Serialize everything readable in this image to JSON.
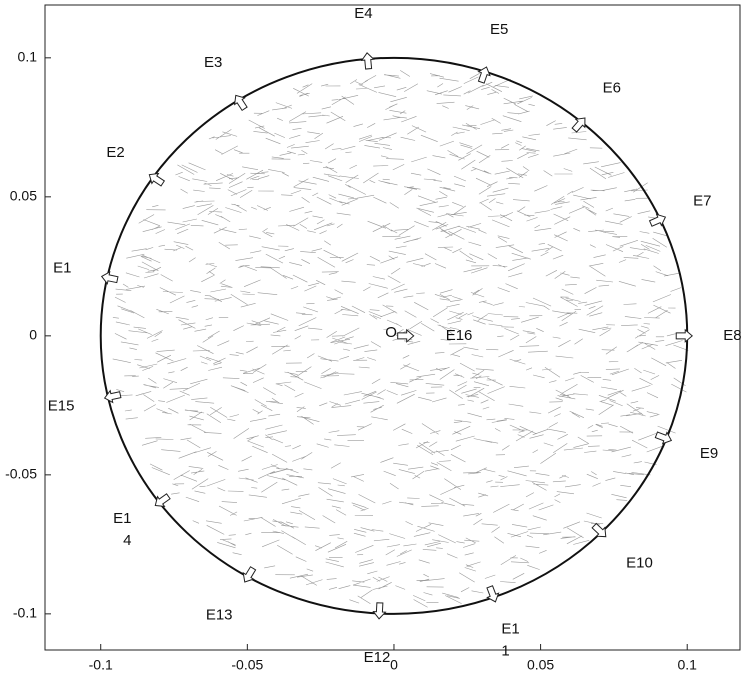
{
  "chart_data": {
    "type": "electrode-map",
    "xlim": [
      -0.119,
      0.118
    ],
    "ylim": [
      -0.113,
      0.119
    ],
    "xticks": [
      -0.1,
      -0.05,
      0,
      0.05,
      0.1
    ],
    "yticks": [
      -0.1,
      -0.05,
      0,
      0.05,
      0.1
    ],
    "boundary_radius": 0.1,
    "center_marker": {
      "text": "O",
      "x": -0.001,
      "y": 0.001
    },
    "electrodes": [
      {
        "label": [
          "E1"
        ],
        "x": -0.098,
        "y": 0.021
      },
      {
        "label": [
          "E2"
        ],
        "x": -0.082,
        "y": 0.057
      },
      {
        "label": [
          "E3"
        ],
        "x": -0.053,
        "y": 0.085
      },
      {
        "label": [
          "E4"
        ],
        "x": -0.009,
        "y": 0.1
      },
      {
        "label": [
          "E5"
        ],
        "x": 0.031,
        "y": 0.095
      },
      {
        "label": [
          "E6"
        ],
        "x": 0.064,
        "y": 0.077
      },
      {
        "label": [
          "E7"
        ],
        "x": 0.091,
        "y": 0.042
      },
      {
        "label": [
          "E8"
        ],
        "x": 0.1,
        "y": 0
      },
      {
        "label": [
          "E9"
        ],
        "x": 0.093,
        "y": -0.037
      },
      {
        "label": [
          "E10"
        ],
        "x": 0.071,
        "y": -0.071
      },
      {
        "label": [
          "E1",
          "1"
        ],
        "x": 0.034,
        "y": -0.094
      },
      {
        "label": [
          "E12"
        ],
        "x": -0.005,
        "y": -0.1
      },
      {
        "label": [
          "E13"
        ],
        "x": -0.05,
        "y": -0.087
      },
      {
        "label": [
          "E1",
          "4"
        ],
        "x": -0.08,
        "y": -0.06
      },
      {
        "label": [
          "E15"
        ],
        "x": -0.097,
        "y": -0.022
      },
      {
        "label": [
          "E16"
        ],
        "x": 0.004,
        "y": 0
      }
    ]
  }
}
